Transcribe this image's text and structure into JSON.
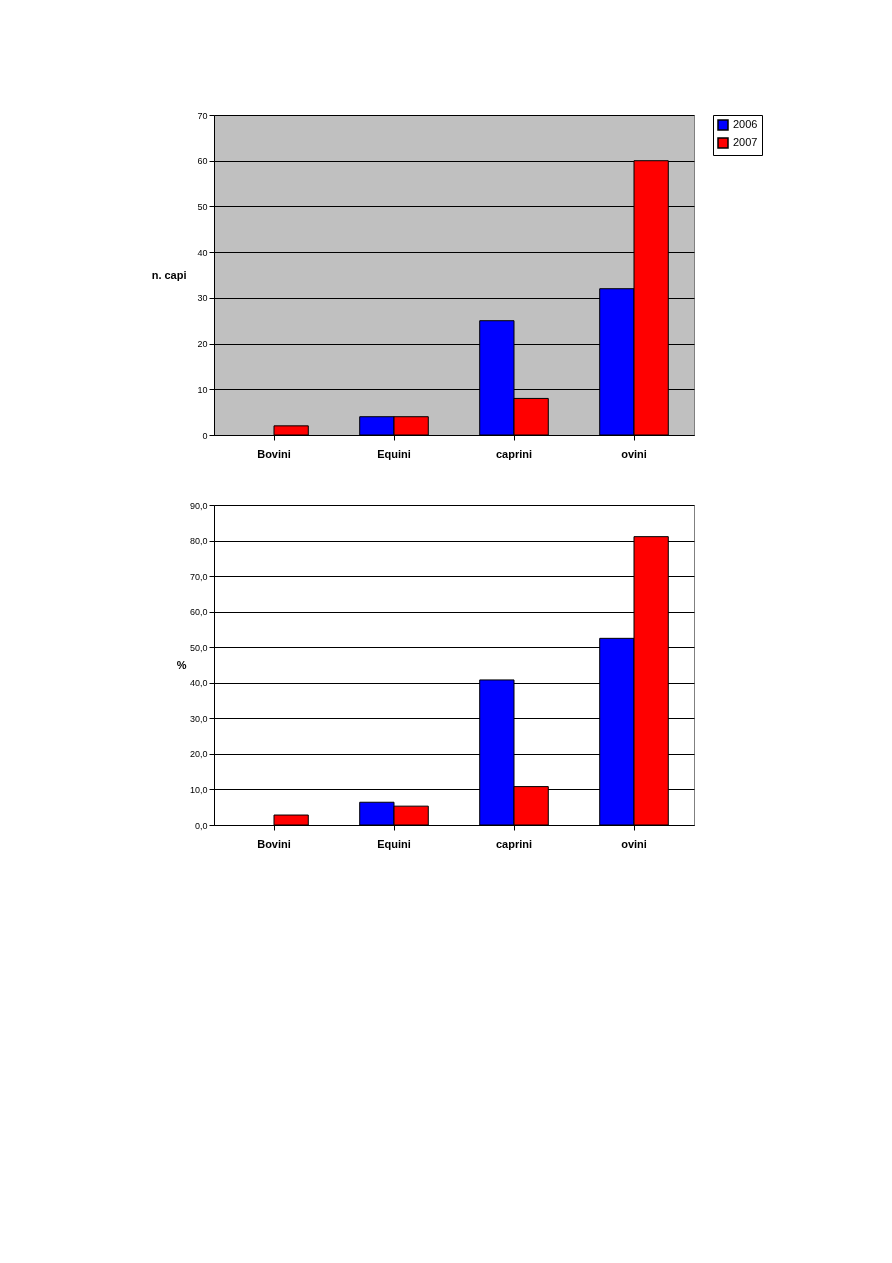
{
  "chart_data": [
    {
      "type": "bar",
      "ylabel": "n. capi",
      "categories": [
        "Bovini",
        "Equini",
        "caprini",
        "ovini"
      ],
      "series": [
        {
          "name": "2006",
          "color": "#0000ff",
          "values": [
            null,
            4,
            25,
            32
          ]
        },
        {
          "name": "2007",
          "color": "#ff0000",
          "values": [
            2,
            4,
            8,
            60
          ]
        }
      ],
      "ylim": [
        0,
        70
      ],
      "yticks": [
        0,
        10,
        20,
        30,
        40,
        50,
        60,
        70
      ],
      "grid": "y",
      "legend": "right"
    },
    {
      "type": "bar",
      "ylabel": "%",
      "categories": [
        "Bovini",
        "Equini",
        "caprini",
        "ovini"
      ],
      "series": [
        {
          "name": "2006",
          "color": "#0000ff",
          "values": [
            null,
            6.4,
            40.8,
            52.5
          ]
        },
        {
          "name": "2007",
          "color": "#ff0000",
          "values": [
            2.8,
            5.3,
            10.8,
            81.1
          ]
        }
      ],
      "ylim": [
        0,
        90
      ],
      "yticks": [
        {
          "value": 0,
          "label": "0,0"
        },
        {
          "value": 10,
          "label": "10,0"
        },
        {
          "value": 20,
          "label": "20,0"
        },
        {
          "value": 30,
          "label": "30,0"
        },
        {
          "value": 40,
          "label": "40,0"
        },
        {
          "value": 50,
          "label": "50,0"
        },
        {
          "value": 60,
          "label": "60,0"
        },
        {
          "value": 70,
          "label": "70,0"
        },
        {
          "value": 80,
          "label": "80,0"
        },
        {
          "value": 90,
          "label": "90,0"
        }
      ],
      "grid": "y",
      "legend": "right"
    }
  ]
}
